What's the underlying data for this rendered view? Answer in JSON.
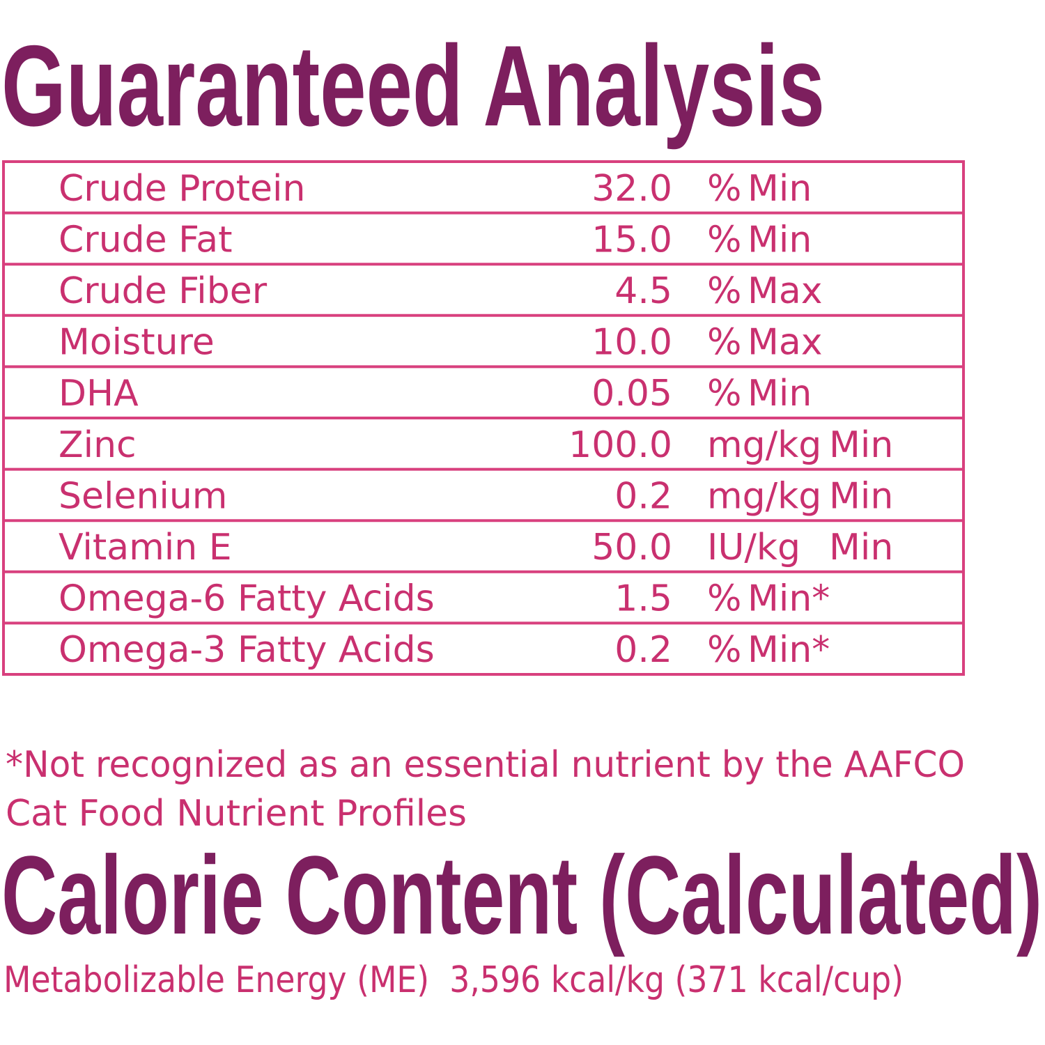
{
  "guaranteed_analysis": {
    "title": "Guaranteed Analysis",
    "rows": [
      {
        "nutrient": "Crude Protein",
        "amount": "32.0",
        "unit": "%",
        "basis": "Min"
      },
      {
        "nutrient": "Crude Fat",
        "amount": "15.0",
        "unit": "%",
        "basis": "Min"
      },
      {
        "nutrient": "Crude Fiber",
        "amount": "4.5",
        "unit": "%",
        "basis": "Max"
      },
      {
        "nutrient": "Moisture",
        "amount": "10.0",
        "unit": "%",
        "basis": "Max"
      },
      {
        "nutrient": "DHA",
        "amount": "0.05",
        "unit": "%",
        "basis": "Min"
      },
      {
        "nutrient": "Zinc",
        "amount": "100.0",
        "unit": "mg/kg",
        "basis": "Min"
      },
      {
        "nutrient": "Selenium",
        "amount": "0.2",
        "unit": "mg/kg",
        "basis": "Min"
      },
      {
        "nutrient": "Vitamin E",
        "amount": "50.0",
        "unit": "IU/kg",
        "basis": "Min"
      },
      {
        "nutrient": "Omega-6 Fatty Acids",
        "amount": "1.5",
        "unit": "%",
        "basis": "Min*"
      },
      {
        "nutrient": "Omega-3 Fatty Acids",
        "amount": "0.2",
        "unit": "%",
        "basis": "Min*"
      }
    ],
    "footnote": [
      "*Not recognized as an essential nutrient by the AAFCO",
      "Cat Food Nutrient Profiles"
    ]
  },
  "calorie_content": {
    "title": "Calorie Content (Calculated)",
    "text": "Metabolizable Energy (ME)  3,596 kcal/kg (371 kcal/cup)"
  }
}
